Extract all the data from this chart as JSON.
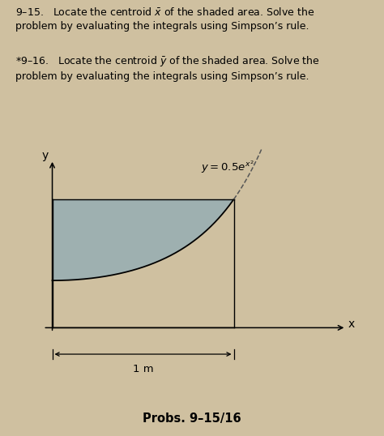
{
  "curve_label": "$y = 0.5e^{x^2}$",
  "dim_label": "1 m",
  "bottom_label": "Probs. 9–15/16",
  "shade_color": "#9eb0b0",
  "bg_color": "#cfc0a0",
  "paper_color": "#e8dcc8",
  "fig_width": 4.74,
  "fig_height": 5.38,
  "text1": "9–15.   Locate the centroid $\\bar{x}$ of the shaded area. Solve the\nproblem by evaluating the integrals using Simpson’s rule.",
  "text2": "*9–16.   Locate the centroid $\\bar{y}$ of the shaded area. Solve the\nproblem by evaluating the integrals using Simpson’s rule."
}
